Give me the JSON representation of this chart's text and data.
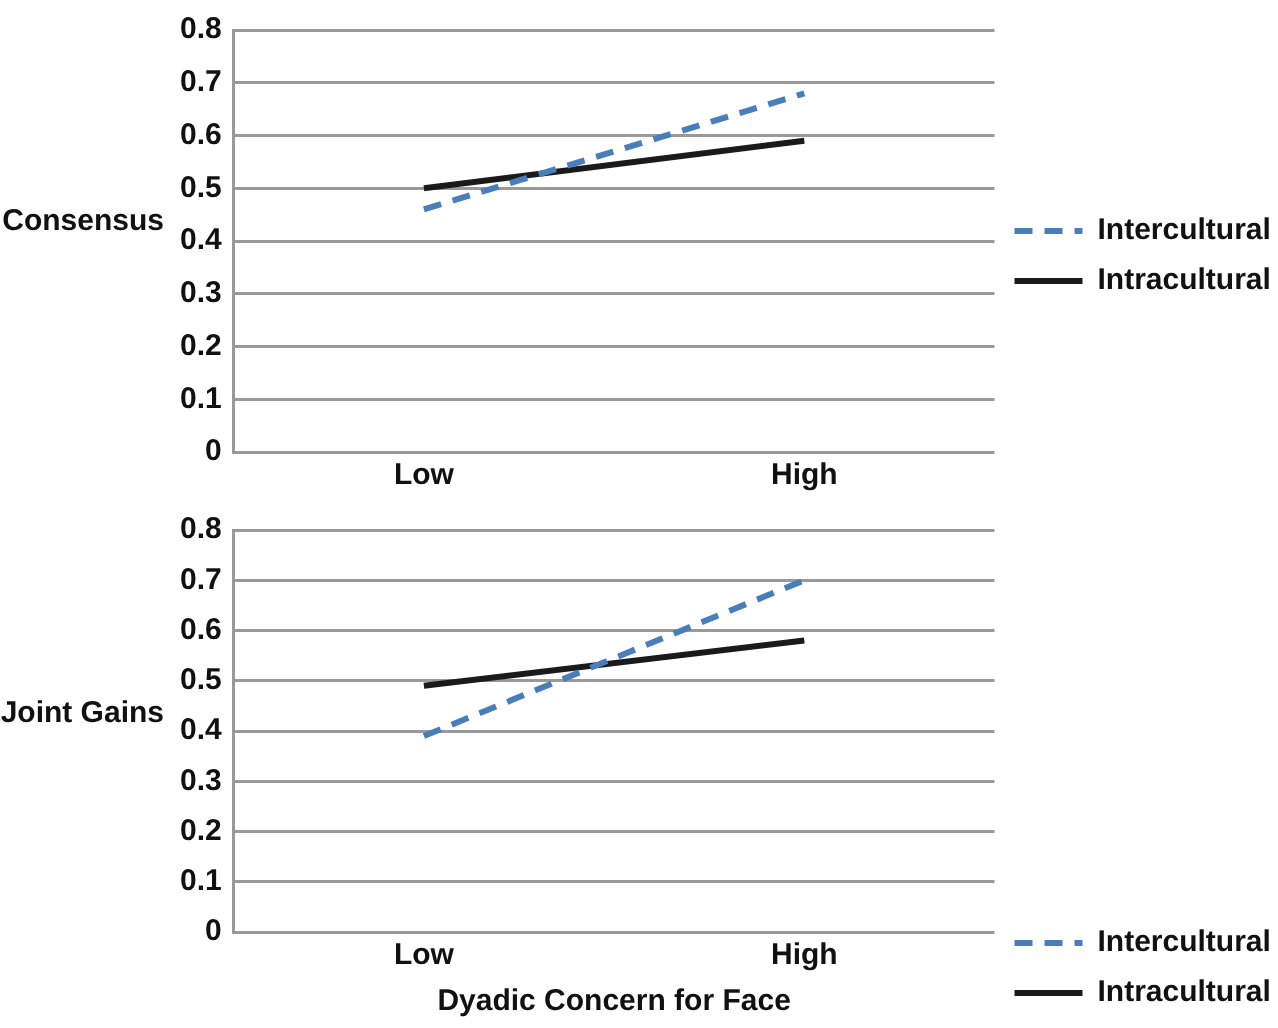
{
  "chart_data": [
    {
      "type": "line",
      "ylabel": "Consensus",
      "categories": [
        "Low",
        "High"
      ],
      "series": [
        {
          "name": "Intercultural",
          "color": "#4a7ebb",
          "values": [
            0.46,
            0.68
          ],
          "line_style": "dashed"
        },
        {
          "name": "Intracultural",
          "color": "#1a1a1a",
          "values": [
            0.5,
            0.59
          ],
          "line_style": "solid"
        }
      ],
      "ylim": [
        0,
        0.8
      ],
      "yticks": [
        0,
        0.1,
        0.2,
        0.3,
        0.4,
        0.5,
        0.6,
        0.7,
        0.8
      ],
      "grid": "y",
      "legend": "right",
      "marker": "none"
    },
    {
      "type": "line",
      "ylabel": "Joint Gains",
      "xlabel": "Dyadic Concern for Face",
      "categories": [
        "Low",
        "High"
      ],
      "series": [
        {
          "name": "Intercultural",
          "color": "#4a7ebb",
          "values": [
            0.39,
            0.7
          ],
          "line_style": "dashed"
        },
        {
          "name": "Intracultural",
          "color": "#1a1a1a",
          "values": [
            0.49,
            0.58
          ],
          "line_style": "solid"
        }
      ],
      "ylim": [
        0,
        0.8
      ],
      "yticks": [
        0,
        0.1,
        0.2,
        0.3,
        0.4,
        0.5,
        0.6,
        0.7,
        0.8
      ],
      "grid": "y",
      "legend": "bottom right",
      "marker": "none"
    }
  ]
}
